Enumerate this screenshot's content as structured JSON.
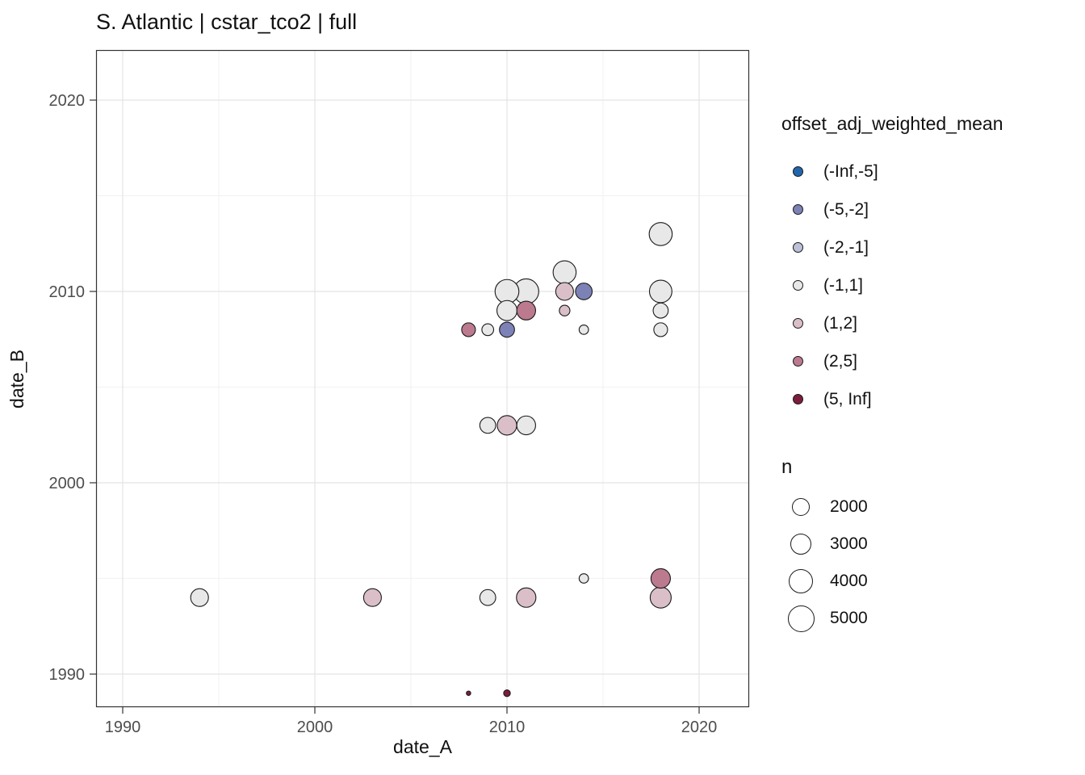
{
  "title": "S. Atlantic | cstar_tco2 | full",
  "chart_data": {
    "type": "scatter",
    "title": "S. Atlantic | cstar_tco2 | full",
    "xlabel": "date_A",
    "ylabel": "date_B",
    "x_ticks": [
      1990,
      2000,
      2010,
      2020
    ],
    "y_ticks": [
      1990,
      2000,
      2010,
      2020
    ],
    "x_minor_ticks": [
      1995,
      2005,
      2015
    ],
    "y_minor_ticks": [
      1995,
      2005,
      2015
    ],
    "xlim": [
      1988.6,
      2022.6
    ],
    "ylim": [
      1988.3,
      2022.6
    ],
    "grid": true,
    "legend_position": "right",
    "color_legend": {
      "title": "offset_adj_weighted_mean",
      "bins": [
        {
          "label": "(-Inf,-5]",
          "color": "#2166ac"
        },
        {
          "label": "(-5,-2]",
          "color": "#7c82b6"
        },
        {
          "label": "(-2,-1]",
          "color": "#bcc0d8"
        },
        {
          "label": "(-1,1]",
          "color": "#e8e8e8"
        },
        {
          "label": "(1,2]",
          "color": "#dabfc8"
        },
        {
          "label": "(2,5]",
          "color": "#bc7a8f"
        },
        {
          "label": "(5, Inf]",
          "color": "#7c1d3f"
        }
      ]
    },
    "size_legend": {
      "title": "n",
      "values": [
        "2000",
        "3000",
        "4000",
        "5000"
      ]
    },
    "points": [
      {
        "x": 1994,
        "y": 1994,
        "n": 2500,
        "bin": "(-1,1]"
      },
      {
        "x": 2003,
        "y": 1994,
        "n": 2500,
        "bin": "(1,2]"
      },
      {
        "x": 2009,
        "y": 1994,
        "n": 2000,
        "bin": "(-1,1]"
      },
      {
        "x": 2011,
        "y": 1994,
        "n": 3000,
        "bin": "(1,2]"
      },
      {
        "x": 2014,
        "y": 1995,
        "n": 700,
        "bin": "(-1,1]"
      },
      {
        "x": 2018,
        "y": 1995,
        "n": 3000,
        "bin": "(2,5]"
      },
      {
        "x": 2018,
        "y": 1994,
        "n": 3500,
        "bin": "(1,2]"
      },
      {
        "x": 2008,
        "y": 1989,
        "n": 150,
        "bin": "(5, Inf]"
      },
      {
        "x": 2010,
        "y": 1989,
        "n": 350,
        "bin": "(5, Inf]"
      },
      {
        "x": 2009,
        "y": 2003,
        "n": 2000,
        "bin": "(-1,1]"
      },
      {
        "x": 2010,
        "y": 2003,
        "n": 3000,
        "bin": "(1,2]"
      },
      {
        "x": 2011,
        "y": 2003,
        "n": 2800,
        "bin": "(-1,1]"
      },
      {
        "x": 2008,
        "y": 2008,
        "n": 1500,
        "bin": "(2,5]"
      },
      {
        "x": 2009,
        "y": 2008,
        "n": 1100,
        "bin": "(-1,1]"
      },
      {
        "x": 2010,
        "y": 2008,
        "n": 1800,
        "bin": "(-5,-2]"
      },
      {
        "x": 2010,
        "y": 2009,
        "n": 3200,
        "bin": "(-1,1]"
      },
      {
        "x": 2011,
        "y": 2009,
        "n": 2800,
        "bin": "(2,5]"
      },
      {
        "x": 2010,
        "y": 2010,
        "n": 4500,
        "bin": "(-1,1]"
      },
      {
        "x": 2011,
        "y": 2010,
        "n": 5000,
        "bin": "(-1,1]"
      },
      {
        "x": 2013,
        "y": 2011,
        "n": 4200,
        "bin": "(-1,1]"
      },
      {
        "x": 2013,
        "y": 2010,
        "n": 2500,
        "bin": "(1,2]"
      },
      {
        "x": 2013,
        "y": 2009,
        "n": 900,
        "bin": "(1,2]"
      },
      {
        "x": 2014,
        "y": 2010,
        "n": 2200,
        "bin": "(-5,-2]"
      },
      {
        "x": 2014,
        "y": 2008,
        "n": 700,
        "bin": "(-1,1]"
      },
      {
        "x": 2018,
        "y": 2013,
        "n": 4200,
        "bin": "(-1,1]"
      },
      {
        "x": 2018,
        "y": 2010,
        "n": 4000,
        "bin": "(-1,1]"
      },
      {
        "x": 2018,
        "y": 2009,
        "n": 1800,
        "bin": "(-1,1]"
      },
      {
        "x": 2018,
        "y": 2008,
        "n": 1500,
        "bin": "(-1,1]"
      }
    ]
  }
}
